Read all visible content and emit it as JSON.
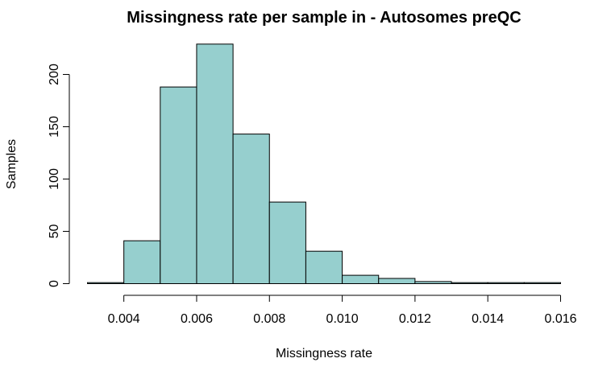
{
  "chart_data": {
    "type": "histogram",
    "title": "Missingness rate per sample in - Autosomes preQC",
    "xlabel": "Missingness rate",
    "ylabel": "Samples",
    "xlim": [
      0.003,
      0.016
    ],
    "ylim": [
      0,
      230
    ],
    "bins": [
      {
        "start": 0.003,
        "end": 0.004,
        "count": 1
      },
      {
        "start": 0.004,
        "end": 0.005,
        "count": 41
      },
      {
        "start": 0.005,
        "end": 0.006,
        "count": 188
      },
      {
        "start": 0.006,
        "end": 0.007,
        "count": 229
      },
      {
        "start": 0.007,
        "end": 0.008,
        "count": 143
      },
      {
        "start": 0.008,
        "end": 0.009,
        "count": 78
      },
      {
        "start": 0.009,
        "end": 0.01,
        "count": 31
      },
      {
        "start": 0.01,
        "end": 0.011,
        "count": 8
      },
      {
        "start": 0.011,
        "end": 0.012,
        "count": 5
      },
      {
        "start": 0.012,
        "end": 0.013,
        "count": 2
      },
      {
        "start": 0.013,
        "end": 0.014,
        "count": 1
      },
      {
        "start": 0.014,
        "end": 0.015,
        "count": 1
      },
      {
        "start": 0.015,
        "end": 0.016,
        "count": 1
      }
    ],
    "x_ticks": [
      {
        "value": 0.004,
        "label": "0.004"
      },
      {
        "value": 0.006,
        "label": "0.006"
      },
      {
        "value": 0.008,
        "label": "0.008"
      },
      {
        "value": 0.01,
        "label": "0.010"
      },
      {
        "value": 0.012,
        "label": "0.012"
      },
      {
        "value": 0.014,
        "label": "0.014"
      },
      {
        "value": 0.016,
        "label": "0.016"
      }
    ],
    "y_ticks": [
      {
        "value": 0,
        "label": "0"
      },
      {
        "value": 50,
        "label": "50"
      },
      {
        "value": 100,
        "label": "100"
      },
      {
        "value": 150,
        "label": "150"
      },
      {
        "value": 200,
        "label": "200"
      }
    ],
    "grid": false,
    "colors": {
      "bar_fill": "#96cfce",
      "bar_stroke": "#000000",
      "axis": "#000000"
    }
  }
}
